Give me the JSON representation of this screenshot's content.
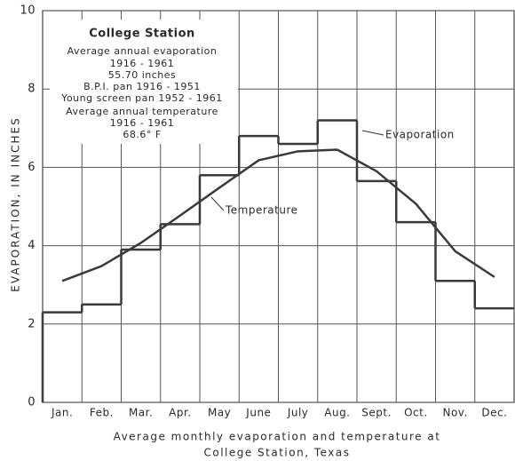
{
  "chart_data": {
    "type": "line",
    "caption": [
      "Average monthly evaporation and temperature at",
      "College Station, Texas"
    ],
    "ylabel": "EVAPORATION, IN INCHES",
    "categories": [
      "Jan.",
      "Feb.",
      "Mar.",
      "Apr.",
      "May",
      "June",
      "July",
      "Aug.",
      "Sept.",
      "Oct.",
      "Nov.",
      "Dec."
    ],
    "series": [
      {
        "name": "Evaporation",
        "color": "#3a3a3a",
        "draw": "step",
        "values": [
          2.3,
          2.5,
          3.9,
          4.55,
          5.8,
          6.8,
          6.6,
          7.2,
          5.65,
          4.6,
          3.1,
          2.4
        ]
      },
      {
        "name": "Temperature",
        "color": "#3a3a3a",
        "draw": "line",
        "values": [
          3.1,
          3.48,
          4.07,
          4.77,
          5.48,
          6.18,
          6.41,
          6.45,
          5.9,
          5.07,
          3.86,
          3.2
        ]
      }
    ],
    "annotation_box": [
      "College Station",
      "Average annual evaporation",
      "1916 - 1961",
      "55.70 inches",
      "B.P.I. pan 1916 - 1951",
      "Young screen pan 1952 - 1961",
      "Average  annual temperature",
      "1916 - 1961",
      "68.6° F"
    ],
    "ylim": [
      0,
      10
    ],
    "yticks": [
      0,
      2,
      4,
      6,
      8,
      10
    ],
    "grid": true
  }
}
